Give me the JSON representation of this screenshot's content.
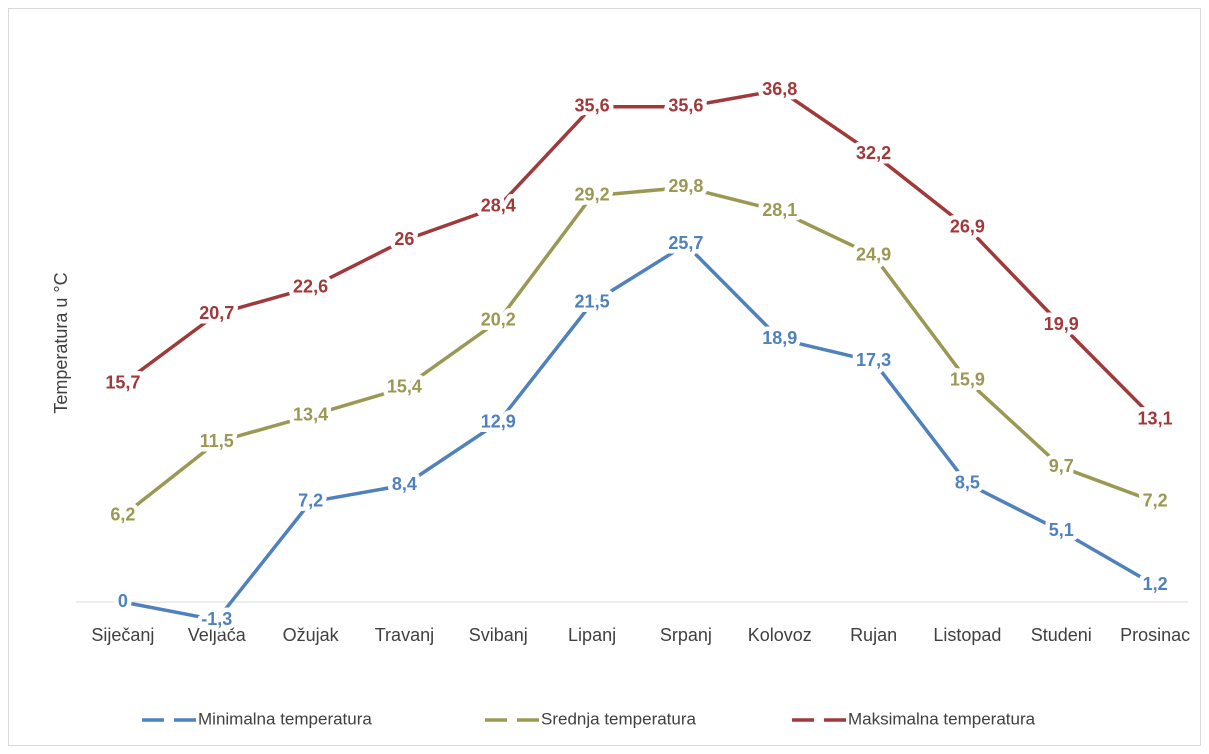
{
  "chart_data": {
    "type": "line",
    "y_label": "Temperatura u °C",
    "categories": [
      "Siječanj",
      "Veljača",
      "Ožujak",
      "Travanj",
      "Svibanj",
      "Lipanj",
      "Srpanj",
      "Kolovoz",
      "Rujan",
      "Listopad",
      "Studeni",
      "Prosinac"
    ],
    "ylim": [
      0,
      40
    ],
    "series": [
      {
        "name": "Minimalna temperatura",
        "color": "#4f81bd",
        "values": [
          0,
          -1.3,
          7.2,
          8.4,
          12.9,
          21.5,
          25.7,
          18.9,
          17.3,
          8.5,
          5.1,
          1.2
        ],
        "value_labels": [
          "0",
          "-1,3",
          "7,2",
          "8,4",
          "12,9",
          "21,5",
          "25,7",
          "18,9",
          "17,3",
          "8,5",
          "5,1",
          "1,2"
        ]
      },
      {
        "name": "Srednja temperatura",
        "color": "#9b9853",
        "values": [
          6.2,
          11.5,
          13.4,
          15.4,
          20.2,
          29.2,
          29.8,
          28.1,
          24.9,
          15.9,
          9.7,
          7.2
        ],
        "value_labels": [
          "6,2",
          "11,5",
          "13,4",
          "15,4",
          "20,2",
          "29,2",
          "29,8",
          "28,1",
          "24,9",
          "15,9",
          "9,7",
          "7,2"
        ]
      },
      {
        "name": "Maksimalna temperatura",
        "color": "#a0393a",
        "values": [
          15.7,
          20.7,
          22.6,
          26,
          28.4,
          35.6,
          35.6,
          36.8,
          32.2,
          26.9,
          19.9,
          13.1
        ],
        "value_labels": [
          "15,7",
          "20,7",
          "22,6",
          "26",
          "28,4",
          "35,6",
          "35,6",
          "36,8",
          "32,2",
          "26,9",
          "19,9",
          "13,1"
        ]
      }
    ],
    "legend": "bottom"
  }
}
